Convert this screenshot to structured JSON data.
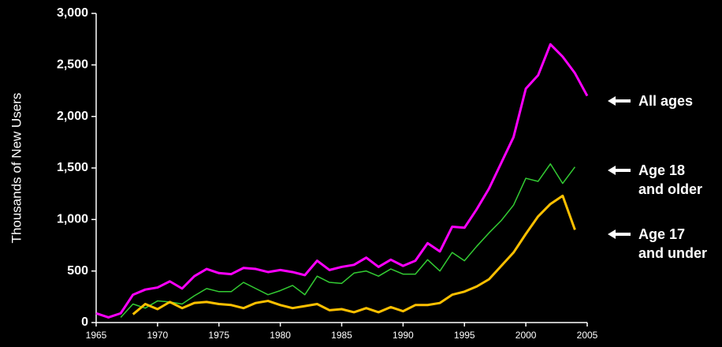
{
  "chart_data": {
    "type": "line",
    "y_label": "Thousands of New Users",
    "x": [
      1965,
      1966,
      1967,
      1968,
      1969,
      1970,
      1971,
      1972,
      1973,
      1974,
      1975,
      1976,
      1977,
      1978,
      1979,
      1980,
      1981,
      1982,
      1983,
      1984,
      1985,
      1986,
      1987,
      1988,
      1989,
      1990,
      1991,
      1992,
      1993,
      1994,
      1995,
      1996,
      1997,
      1998,
      1999,
      2000,
      2001,
      2002,
      2003,
      2004,
      2005
    ],
    "series": [
      {
        "name": "All ages",
        "color": "#ff00ff",
        "values": [
          90,
          50,
          90,
          270,
          320,
          340,
          400,
          330,
          450,
          520,
          480,
          470,
          530,
          520,
          490,
          510,
          490,
          460,
          600,
          510,
          540,
          560,
          630,
          540,
          610,
          550,
          600,
          770,
          690,
          930,
          920,
          1100,
          1300,
          1550,
          1800,
          2270,
          2400,
          2700,
          2580,
          2420,
          2200
        ]
      },
      {
        "name": "Age 18\nand older",
        "color": "#33cc33",
        "values": [
          null,
          null,
          50,
          180,
          140,
          210,
          200,
          180,
          260,
          330,
          300,
          300,
          390,
          330,
          270,
          310,
          360,
          270,
          450,
          390,
          380,
          480,
          500,
          450,
          520,
          470,
          470,
          610,
          500,
          680,
          600,
          740,
          870,
          990,
          1140,
          1400,
          1370,
          1540,
          1350,
          1510,
          null
        ]
      },
      {
        "name": "Age 17\nand under",
        "color": "#ffc000",
        "values": [
          null,
          null,
          null,
          80,
          180,
          130,
          200,
          140,
          190,
          200,
          180,
          170,
          140,
          190,
          210,
          170,
          140,
          160,
          180,
          120,
          130,
          100,
          140,
          100,
          150,
          110,
          170,
          170,
          190,
          270,
          300,
          350,
          420,
          550,
          680,
          860,
          1030,
          1150,
          1230,
          900,
          null
        ]
      }
    ],
    "xlim": [
      1965,
      2005
    ],
    "xticks": [
      1965,
      1970,
      1975,
      1980,
      1985,
      1990,
      1995,
      2000,
      2005
    ],
    "ylim": [
      0,
      3000
    ],
    "yticks": [
      0,
      500,
      {
        "value": 1000,
        "label": "1,000"
      },
      {
        "value": 1500,
        "label": "1,500"
      },
      {
        "value": 2000,
        "label": "2,000"
      },
      {
        "value": 2500,
        "label": "2,500"
      },
      {
        "value": 3000,
        "label": "3,000"
      }
    ]
  }
}
